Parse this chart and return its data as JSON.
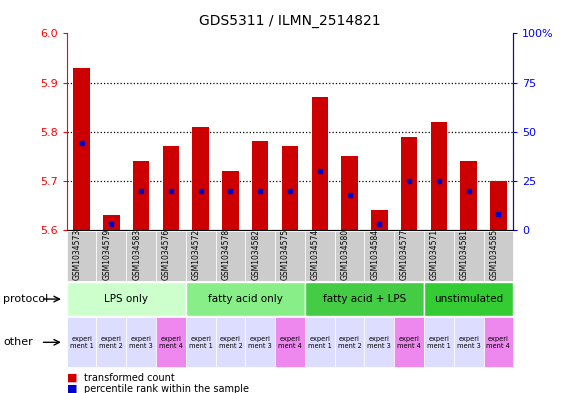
{
  "title": "GDS5311 / ILMN_2514821",
  "samples": [
    "GSM1034573",
    "GSM1034579",
    "GSM1034583",
    "GSM1034576",
    "GSM1034572",
    "GSM1034578",
    "GSM1034582",
    "GSM1034575",
    "GSM1034574",
    "GSM1034580",
    "GSM1034584",
    "GSM1034577",
    "GSM1034571",
    "GSM1034581",
    "GSM1034585"
  ],
  "transformed_counts": [
    5.93,
    5.63,
    5.74,
    5.77,
    5.81,
    5.72,
    5.78,
    5.77,
    5.87,
    5.75,
    5.64,
    5.79,
    5.82,
    5.74,
    5.7
  ],
  "percentile_ranks": [
    44,
    3,
    20,
    20,
    20,
    20,
    20,
    20,
    30,
    18,
    3,
    25,
    25,
    20,
    8
  ],
  "ylim_left": [
    5.6,
    6.0
  ],
  "ylim_right": [
    0,
    100
  ],
  "yticks_left": [
    5.6,
    5.7,
    5.8,
    5.9,
    6.0
  ],
  "yticks_right": [
    0,
    25,
    50,
    75,
    100
  ],
  "protocols": [
    {
      "label": "LPS only",
      "start": 0,
      "end": 4,
      "color": "#ccffcc"
    },
    {
      "label": "fatty acid only",
      "start": 4,
      "end": 8,
      "color": "#88ee88"
    },
    {
      "label": "fatty acid + LPS",
      "start": 8,
      "end": 12,
      "color": "#44cc44"
    },
    {
      "label": "unstimulated",
      "start": 12,
      "end": 15,
      "color": "#33cc33"
    }
  ],
  "experiments": [
    "experi\nment 1",
    "experi\nment 2",
    "experi\nment 3",
    "experi\nment 4",
    "experi\nment 1",
    "experi\nment 2",
    "experi\nment 3",
    "experi\nment 4",
    "experi\nment 1",
    "experi\nment 2",
    "experi\nment 3",
    "experi\nment 4",
    "experi\nment 1",
    "experi\nment 3",
    "experi\nment 4"
  ],
  "exp_colors": [
    "#ddddff",
    "#ddddff",
    "#ddddff",
    "#ee88ee",
    "#ddddff",
    "#ddddff",
    "#ddddff",
    "#ee88ee",
    "#ddddff",
    "#ddddff",
    "#ddddff",
    "#ee88ee",
    "#ddddff",
    "#ddddff",
    "#ee88ee"
  ],
  "bar_color_red": "#cc0000",
  "bar_color_blue": "#0000cc",
  "bar_baseline": 5.6,
  "plot_bg": "#ffffff",
  "fig_bg": "#ffffff",
  "sample_box_color": "#cccccc",
  "grid_dotted_color": "#000000"
}
